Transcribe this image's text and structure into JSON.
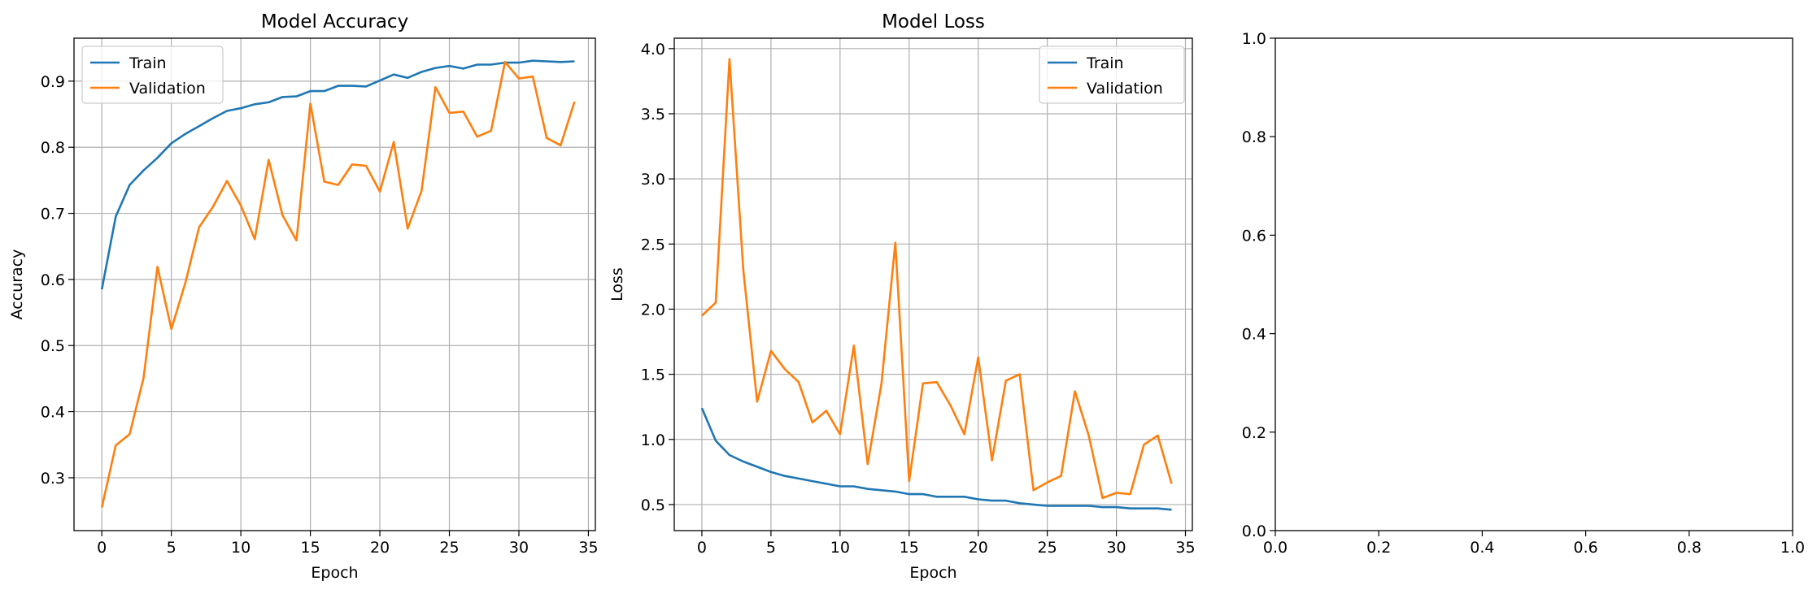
{
  "chart_data": [
    {
      "type": "line",
      "title": "Model Accuracy",
      "xlabel": "Epoch",
      "ylabel": "Accuracy",
      "xlim": [
        -2,
        35.5
      ],
      "ylim": [
        0.22,
        0.965
      ],
      "xticks": [
        0,
        5,
        10,
        15,
        20,
        25,
        30,
        35
      ],
      "yticks": [
        0.3,
        0.4,
        0.5,
        0.6,
        0.7,
        0.8,
        0.9
      ],
      "tick_decimals": 1,
      "grid": true,
      "legend": "upper left",
      "series": [
        {
          "name": "Train",
          "color": "#1f77b4",
          "x": [
            0,
            1,
            2,
            3,
            4,
            5,
            6,
            7,
            8,
            9,
            10,
            11,
            12,
            13,
            14,
            15,
            16,
            17,
            18,
            19,
            20,
            21,
            22,
            23,
            24,
            25,
            26,
            27,
            28,
            29,
            30,
            31,
            32,
            33,
            34
          ],
          "values": [
            0.585,
            0.695,
            0.743,
            0.765,
            0.784,
            0.806,
            0.82,
            0.832,
            0.844,
            0.855,
            0.859,
            0.865,
            0.868,
            0.876,
            0.877,
            0.885,
            0.885,
            0.893,
            0.893,
            0.892,
            0.901,
            0.91,
            0.905,
            0.914,
            0.92,
            0.923,
            0.919,
            0.925,
            0.925,
            0.928,
            0.928,
            0.931,
            0.93,
            0.929,
            0.93
          ]
        },
        {
          "name": "Validation",
          "color": "#ff7f0e",
          "x": [
            0,
            1,
            2,
            3,
            4,
            5,
            6,
            7,
            8,
            9,
            10,
            11,
            12,
            13,
            14,
            15,
            16,
            17,
            18,
            19,
            20,
            21,
            22,
            23,
            24,
            25,
            26,
            27,
            28,
            29,
            30,
            31,
            32,
            33,
            34
          ],
          "values": [
            0.255,
            0.349,
            0.366,
            0.451,
            0.619,
            0.525,
            0.594,
            0.679,
            0.71,
            0.749,
            0.712,
            0.661,
            0.781,
            0.697,
            0.659,
            0.866,
            0.748,
            0.743,
            0.774,
            0.772,
            0.733,
            0.808,
            0.677,
            0.734,
            0.891,
            0.852,
            0.854,
            0.816,
            0.825,
            0.929,
            0.904,
            0.907,
            0.814,
            0.803,
            0.869
          ]
        }
      ]
    },
    {
      "type": "line",
      "title": "Model Loss",
      "xlabel": "Epoch",
      "ylabel": "Loss",
      "xlim": [
        -2,
        35.5
      ],
      "ylim": [
        0.3,
        4.08
      ],
      "xticks": [
        0,
        5,
        10,
        15,
        20,
        25,
        30,
        35
      ],
      "yticks": [
        0.5,
        1.0,
        1.5,
        2.0,
        2.5,
        3.0,
        3.5,
        4.0
      ],
      "tick_decimals": 1,
      "grid": true,
      "legend": "upper right",
      "series": [
        {
          "name": "Train",
          "color": "#1f77b4",
          "x": [
            0,
            1,
            2,
            3,
            4,
            5,
            6,
            7,
            8,
            9,
            10,
            11,
            12,
            13,
            14,
            15,
            16,
            17,
            18,
            19,
            20,
            21,
            22,
            23,
            24,
            25,
            26,
            27,
            28,
            29,
            30,
            31,
            32,
            33,
            34
          ],
          "values": [
            1.24,
            0.99,
            0.88,
            0.83,
            0.79,
            0.75,
            0.72,
            0.7,
            0.68,
            0.66,
            0.64,
            0.64,
            0.62,
            0.61,
            0.6,
            0.58,
            0.58,
            0.56,
            0.56,
            0.56,
            0.54,
            0.53,
            0.53,
            0.51,
            0.5,
            0.49,
            0.49,
            0.49,
            0.49,
            0.48,
            0.48,
            0.47,
            0.47,
            0.47,
            0.46
          ]
        },
        {
          "name": "Validation",
          "color": "#ff7f0e",
          "x": [
            0,
            1,
            2,
            3,
            4,
            5,
            6,
            7,
            8,
            9,
            10,
            11,
            12,
            13,
            14,
            15,
            16,
            17,
            18,
            19,
            20,
            21,
            22,
            23,
            24,
            25,
            26,
            27,
            28,
            29,
            30,
            31,
            32,
            33,
            34
          ],
          "values": [
            1.95,
            2.05,
            3.92,
            2.3,
            1.29,
            1.68,
            1.54,
            1.44,
            1.13,
            1.22,
            1.04,
            1.72,
            0.81,
            1.43,
            2.51,
            0.68,
            1.43,
            1.44,
            1.26,
            1.04,
            1.63,
            0.84,
            1.45,
            1.5,
            0.61,
            0.67,
            0.72,
            1.37,
            1.03,
            0.55,
            0.59,
            0.58,
            0.96,
            1.03,
            0.66
          ]
        }
      ]
    },
    {
      "type": "line",
      "title": "",
      "xlabel": "",
      "ylabel": "",
      "xlim": [
        0,
        1
      ],
      "ylim": [
        0,
        1
      ],
      "xticks": [
        0.0,
        0.2,
        0.4,
        0.6,
        0.8,
        1.0
      ],
      "yticks": [
        0.0,
        0.2,
        0.4,
        0.6,
        0.8,
        1.0
      ],
      "tick_decimals": 1,
      "grid": false,
      "legend": "none",
      "series": []
    }
  ]
}
